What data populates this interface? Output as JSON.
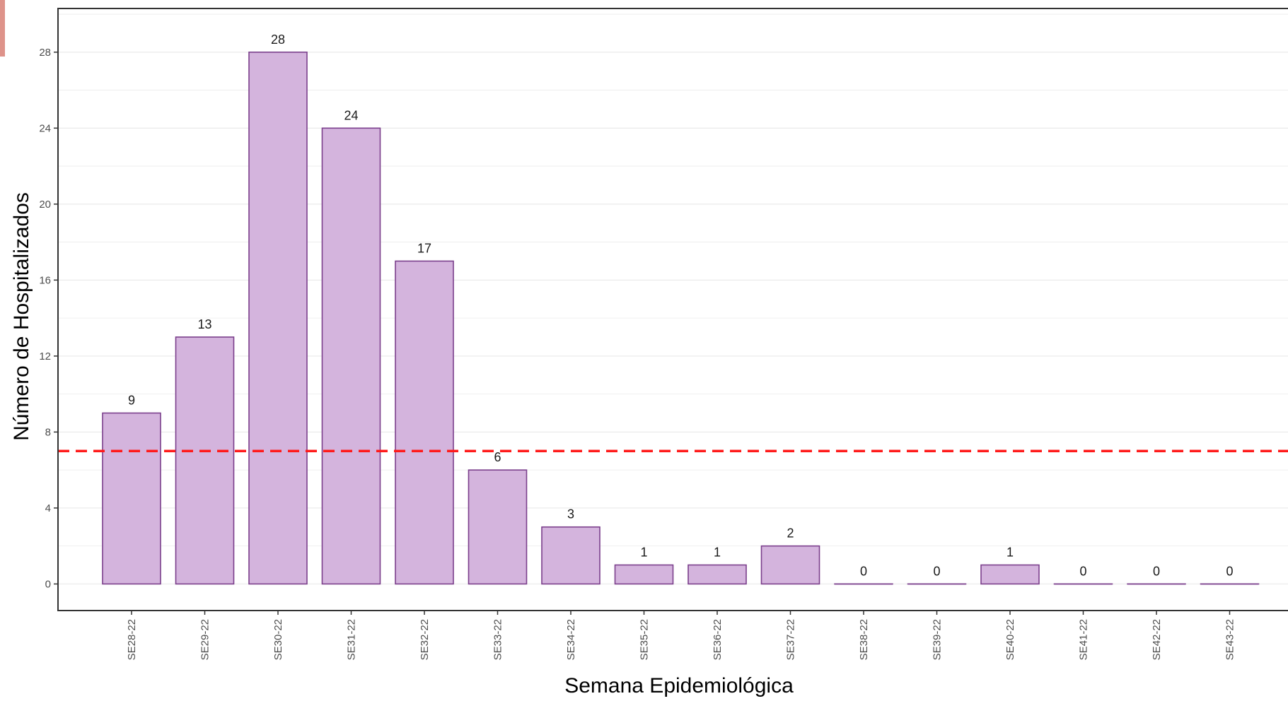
{
  "chart_data": {
    "type": "bar",
    "title": "",
    "xlabel": "Semana Epidemiológica",
    "ylabel": "Número de Hospitalizados",
    "categories": [
      "SE28-22",
      "SE29-22",
      "SE30-22",
      "SE31-22",
      "SE32-22",
      "SE33-22",
      "SE34-22",
      "SE35-22",
      "SE36-22",
      "SE37-22",
      "SE38-22",
      "SE39-22",
      "SE40-22",
      "SE41-22",
      "SE42-22",
      "SE43-22"
    ],
    "values": [
      9,
      13,
      28,
      24,
      17,
      6,
      3,
      1,
      1,
      2,
      0,
      0,
      1,
      0,
      0,
      0
    ],
    "data_labels": [
      "9",
      "13",
      "28",
      "24",
      "17",
      "6",
      "3",
      "1",
      "1",
      "2",
      "0",
      "0",
      "1",
      "0",
      "0",
      "0"
    ],
    "yticks": [
      0,
      4,
      8,
      12,
      16,
      20,
      24,
      28
    ],
    "ytick_labels": [
      "0",
      "4",
      "8",
      "12",
      "16",
      "20",
      "24",
      "28"
    ],
    "ylim": [
      -1.4,
      30.3
    ],
    "threshold": 7,
    "grid": true,
    "legend": "none",
    "colors": {
      "bar_fill": "#d4b4dd",
      "bar_stroke": "#7b3f8c",
      "threshold_line": "#ff1a1a",
      "grid": "#ebebeb",
      "axis": "#333333"
    }
  }
}
